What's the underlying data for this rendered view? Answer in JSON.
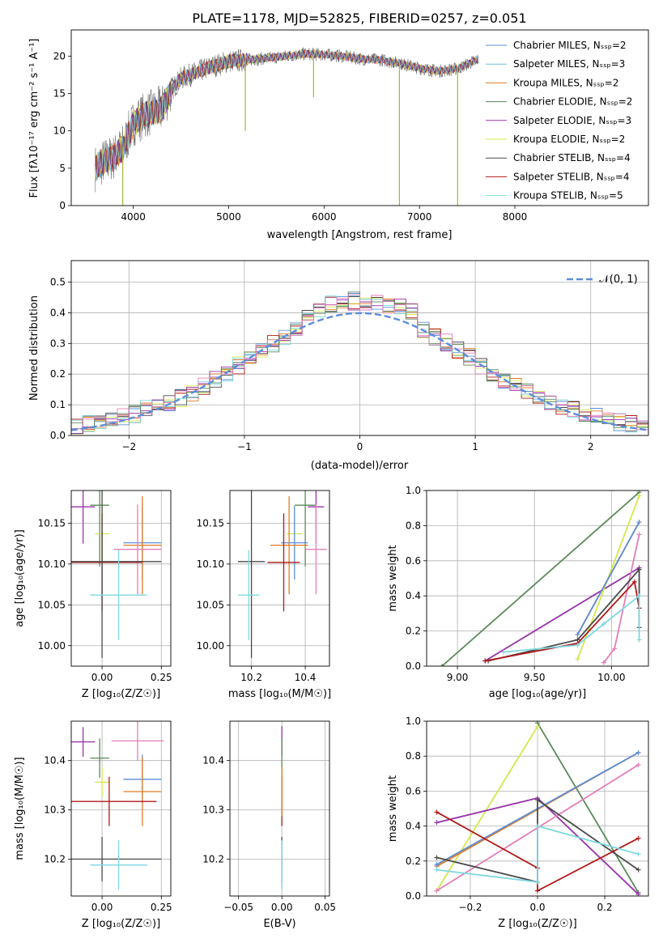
{
  "colors": {
    "chabrier_miles": "#5b8fd9",
    "salpeter_miles": "#6cc4dc",
    "kroupa_miles": "#e07b24",
    "chabrier_elodie": "#5a8a5a",
    "salpeter_elodie": "#9932aa",
    "kroupa_elodie": "#d4e84a",
    "chabrier_stelib": "#4a4a4a",
    "salpeter_stelib": "#b01818",
    "kroupa_stelib": "#7dd8e0",
    "pink": "#e47eb8",
    "fit_line": "#6e6e6e",
    "gauss": "#5b8fd9"
  },
  "chart_data": [
    {
      "id": "spectrum",
      "type": "line",
      "title": "PLATE=1178, MJD=52825, FIBERID=0257, z=0.051",
      "xlabel": "wavelength [Angstrom, rest frame]",
      "ylabel": "Flux [f_λ10^-17 erg cm^-2 s^-1 A^-1]",
      "xlim": [
        3350,
        9400
      ],
      "ylim": [
        0,
        23.5
      ],
      "xticks": [
        4000,
        5000,
        6000,
        7000,
        8000
      ],
      "yticks": [
        0,
        5,
        10,
        15,
        20
      ],
      "legend": [
        "Chabrier MILES, N_SSP=2",
        "Salpeter MILES, N_SSP=3",
        "Kroupa MILES, N_SSP=2",
        "Chabrier ELODIE, N_SSP=2",
        "Salpeter ELODIE, N_SSP=3",
        "Kroupa ELODIE, N_SSP=2",
        "Chabrier STELIB, N_SSP=4",
        "Salpeter STELIB, N_SSP=4",
        "Kroupa STELIB, N_SSP=5"
      ],
      "continuum_x": [
        3600,
        3700,
        3800,
        3900,
        4000,
        4100,
        4200,
        4300,
        4400,
        4500,
        4600,
        4800,
        5000,
        5200,
        5400,
        5600,
        5800,
        6000,
        6200,
        6400,
        6600,
        6800,
        7000,
        7200,
        7400,
        7600
      ],
      "continuum_y": [
        5,
        6,
        6.5,
        8,
        11,
        12,
        12.5,
        13,
        15.5,
        17,
        17.5,
        18.5,
        19.3,
        19.5,
        19.7,
        20,
        20.3,
        20.2,
        20,
        19.6,
        19.5,
        19,
        18.4,
        18,
        18.3,
        19.5
      ],
      "dips": [
        {
          "x": 3890,
          "y": 0
        },
        {
          "x": 5175,
          "y": 10
        },
        {
          "x": 5890,
          "y": 14.5
        },
        {
          "x": 6790,
          "y": 0
        },
        {
          "x": 7400,
          "y": 0
        }
      ]
    },
    {
      "id": "residuals",
      "type": "histogram",
      "xlabel": "(data-model)/error",
      "ylabel": "Normed distribution",
      "xlim": [
        -2.5,
        2.5
      ],
      "ylim": [
        0,
        0.57
      ],
      "xticks": [
        -2,
        -1,
        0,
        1,
        2
      ],
      "yticks": [
        0.0,
        0.1,
        0.2,
        0.3,
        0.4,
        0.5
      ],
      "legend": "𝒩(0, 1)"
    },
    {
      "id": "age_vs_Z",
      "type": "scatter",
      "xlabel": "Z [log10(Z/Z☉)]",
      "ylabel": "age [log10(age/yr)]",
      "xlim": [
        -0.13,
        0.29
      ],
      "ylim": [
        9.975,
        10.19
      ],
      "xticks": [
        0.0,
        0.25
      ],
      "yticks": [
        10.0,
        10.05,
        10.1,
        10.15
      ],
      "points": [
        {
          "c": "salpeter_elodie",
          "x": -0.08,
          "xe": 0.05,
          "y": 10.17,
          "ye": 0.045
        },
        {
          "c": "chabrier_elodie",
          "x": -0.01,
          "xe": 0.04,
          "y": 10.172,
          "ye": 0.075
        },
        {
          "c": "kroupa_elodie",
          "x": 0.0,
          "xe": 0.03,
          "y": 10.137,
          "ye": 0.035
        },
        {
          "c": "chabrier_miles",
          "x": 0.17,
          "xe": 0.08,
          "y": 10.126,
          "ye": 0.045
        },
        {
          "c": "kroupa_miles",
          "x": 0.17,
          "xe": 0.08,
          "y": 10.123,
          "ye": 0.06
        },
        {
          "c": "pink",
          "x": 0.15,
          "xe": 0.1,
          "y": 10.118,
          "ye": 0.055
        },
        {
          "c": "salpeter_stelib",
          "x": 0.0,
          "xe": 0.17,
          "y": 10.102,
          "ye": 0.06
        },
        {
          "c": "chabrier_stelib",
          "x": 0.0,
          "xe": 0.25,
          "y": 10.103,
          "ye": 0.118
        },
        {
          "c": "kroupa_stelib",
          "x": 0.07,
          "xe": 0.12,
          "y": 10.062,
          "ye": 0.055
        }
      ]
    },
    {
      "id": "age_vs_mass",
      "type": "scatter",
      "xlabel": "mass [log10(M/M☉)]",
      "ylabel": "",
      "xlim": [
        10.12,
        10.49
      ],
      "ylim": [
        9.975,
        10.19
      ],
      "xticks": [
        10.2,
        10.4
      ],
      "yticks": [
        10.0,
        10.05,
        10.1,
        10.15
      ],
      "points": [
        {
          "c": "salpeter_elodie",
          "x": 10.44,
          "xe": 0.03,
          "y": 10.17,
          "ye": 0.045
        },
        {
          "c": "chabrier_elodie",
          "x": 10.4,
          "xe": 0.04,
          "y": 10.172,
          "ye": 0.075
        },
        {
          "c": "kroupa_elodie",
          "x": 10.36,
          "xe": 0.03,
          "y": 10.137,
          "ye": 0.035
        },
        {
          "c": "chabrier_miles",
          "x": 10.36,
          "xe": 0.05,
          "y": 10.126,
          "ye": 0.045
        },
        {
          "c": "kroupa_miles",
          "x": 10.34,
          "xe": 0.07,
          "y": 10.123,
          "ye": 0.06
        },
        {
          "c": "pink",
          "x": 10.44,
          "xe": 0.04,
          "y": 10.118,
          "ye": 0.055
        },
        {
          "c": "salpeter_stelib",
          "x": 10.32,
          "xe": 0.06,
          "y": 10.102,
          "ye": 0.06
        },
        {
          "c": "chabrier_stelib",
          "x": 10.2,
          "xe": 0.05,
          "y": 10.103,
          "ye": 0.118
        },
        {
          "c": "kroupa_stelib",
          "x": 10.19,
          "xe": 0.04,
          "y": 10.062,
          "ye": 0.055
        }
      ]
    },
    {
      "id": "weight_vs_age",
      "type": "line",
      "xlabel": "age [log10(age/yr)]",
      "ylabel": "mass weight",
      "xlim": [
        8.8,
        10.24
      ],
      "ylim": [
        0.0,
        1.0
      ],
      "xticks": [
        9.0,
        9.5,
        10.0
      ],
      "yticks": [
        0.0,
        0.2,
        0.4,
        0.6,
        0.8,
        1.0
      ],
      "series": [
        {
          "c": "chabrier_elodie",
          "x": [
            8.9,
            10.18
          ],
          "y": [
            0.0,
            0.99
          ]
        },
        {
          "c": "salpeter_elodie",
          "x": [
            9.18,
            10.18
          ],
          "y": [
            0.03,
            0.56
          ]
        },
        {
          "c": "kroupa_elodie",
          "x": [
            9.78,
            10.18
          ],
          "y": [
            0.04,
            0.97
          ]
        },
        {
          "c": "kroupa_miles",
          "x": [
            9.78,
            10.18
          ],
          "y": [
            0.18,
            0.82
          ]
        },
        {
          "c": "chabrier_miles",
          "x": [
            9.78,
            10.18
          ],
          "y": [
            0.18,
            0.82
          ]
        },
        {
          "c": "pink",
          "x": [
            9.95,
            10.02,
            10.18
          ],
          "y": [
            0.02,
            0.1,
            0.75
          ]
        },
        {
          "c": "chabrier_stelib",
          "x": [
            9.2,
            9.78,
            10.18,
            10.18
          ],
          "y": [
            0.03,
            0.15,
            0.55,
            0.22
          ]
        },
        {
          "c": "salpeter_stelib",
          "x": [
            9.18,
            9.78,
            10.15,
            10.18
          ],
          "y": [
            0.03,
            0.13,
            0.48,
            0.33
          ]
        },
        {
          "c": "kroupa_stelib",
          "x": [
            9.3,
            9.78,
            9.95,
            10.18,
            10.18
          ],
          "y": [
            0.08,
            0.12,
            0.24,
            0.4,
            0.15
          ]
        }
      ]
    },
    {
      "id": "mass_vs_Z",
      "type": "scatter",
      "xlabel": "Z [log10(Z/Z☉)]",
      "ylabel": "mass [log10(M/M☉)]",
      "xlim": [
        -0.13,
        0.29
      ],
      "ylim": [
        10.125,
        10.48
      ],
      "xticks": [
        0.0,
        0.25
      ],
      "yticks": [
        10.2,
        10.3,
        10.4
      ],
      "points": [
        {
          "c": "salpeter_elodie",
          "x": -0.08,
          "xe": 0.05,
          "y": 10.438,
          "ye": 0.03
        },
        {
          "c": "chabrier_elodie",
          "x": -0.01,
          "xe": 0.04,
          "y": 10.405,
          "ye": 0.04
        },
        {
          "c": "kroupa_elodie",
          "x": 0.0,
          "xe": 0.03,
          "y": 10.356,
          "ye": 0.03
        },
        {
          "c": "pink",
          "x": 0.15,
          "xe": 0.11,
          "y": 10.44,
          "ye": 0.04
        },
        {
          "c": "chabrier_miles",
          "x": 0.17,
          "xe": 0.08,
          "y": 10.362,
          "ye": 0.05
        },
        {
          "c": "kroupa_miles",
          "x": 0.17,
          "xe": 0.08,
          "y": 10.337,
          "ye": 0.07
        },
        {
          "c": "salpeter_stelib",
          "x": 0.03,
          "xe": 0.2,
          "y": 10.317,
          "ye": 0.05
        },
        {
          "c": "chabrier_stelib",
          "x": 0.0,
          "xe": 0.25,
          "y": 10.2,
          "ye": 0.045
        },
        {
          "c": "kroupa_stelib",
          "x": 0.07,
          "xe": 0.12,
          "y": 10.188,
          "ye": 0.05
        }
      ]
    },
    {
      "id": "mass_vs_ebv",
      "type": "scatter",
      "xlabel": "E(B-V)",
      "ylabel": "",
      "xlim": [
        -0.06,
        0.055
      ],
      "ylim": [
        10.125,
        10.48
      ],
      "xticks": [
        -0.05,
        0.0,
        0.05
      ],
      "yticks": [
        10.2,
        10.3,
        10.4
      ],
      "points": [
        {
          "c": "salpeter_elodie",
          "x": 0.0,
          "y": 10.44,
          "ye": 0.03
        },
        {
          "c": "chabrier_elodie",
          "x": 0.0,
          "y": 10.405,
          "ye": 0.04
        },
        {
          "c": "kroupa_elodie",
          "x": 0.0,
          "y": 10.356,
          "ye": 0.03
        },
        {
          "c": "salpeter_stelib",
          "x": 0.0,
          "y": 10.317,
          "ye": 0.05
        },
        {
          "c": "kroupa_miles",
          "x": 0.0,
          "y": 10.337,
          "ye": 0.05
        },
        {
          "c": "chabrier_stelib",
          "x": 0.0,
          "y": 10.2,
          "ye": 0.045
        },
        {
          "c": "kroupa_stelib",
          "x": 0.0,
          "y": 10.188,
          "ye": 0.05
        }
      ]
    },
    {
      "id": "weight_vs_Z",
      "type": "line",
      "xlabel": "Z [log10(Z/Z☉)]",
      "ylabel": "mass weight",
      "xlim": [
        -0.33,
        0.33
      ],
      "ylim": [
        0.0,
        1.0
      ],
      "xticks": [
        -0.2,
        0.0,
        0.2
      ],
      "yticks": [
        0.0,
        0.2,
        0.4,
        0.6,
        0.8,
        1.0
      ],
      "series": [
        {
          "c": "chabrier_elodie",
          "x": [
            0.0,
            0.3
          ],
          "y": [
            0.99,
            0.02
          ]
        },
        {
          "c": "kroupa_elodie",
          "x": [
            -0.3,
            0.0
          ],
          "y": [
            0.03,
            0.97
          ]
        },
        {
          "c": "salpeter_elodie",
          "x": [
            -0.3,
            0.0,
            0.3
          ],
          "y": [
            0.42,
            0.56,
            0.01
          ]
        },
        {
          "c": "kroupa_miles",
          "x": [
            -0.3,
            0.3
          ],
          "y": [
            0.17,
            0.82
          ]
        },
        {
          "c": "chabrier_miles",
          "x": [
            -0.3,
            0.3
          ],
          "y": [
            0.18,
            0.82
          ]
        },
        {
          "c": "pink",
          "x": [
            -0.3,
            0.3
          ],
          "y": [
            0.03,
            0.75
          ]
        },
        {
          "c": "chabrier_stelib",
          "x": [
            -0.3,
            0.0,
            0.0,
            0.3
          ],
          "y": [
            0.22,
            0.08,
            0.55,
            0.15
          ]
        },
        {
          "c": "salpeter_stelib",
          "x": [
            -0.3,
            0.0,
            0.0,
            0.3
          ],
          "y": [
            0.48,
            0.16,
            0.03,
            0.33
          ]
        },
        {
          "c": "kroupa_stelib",
          "x": [
            -0.3,
            0.0,
            0.0,
            0.3
          ],
          "y": [
            0.15,
            0.08,
            0.4,
            0.24
          ]
        }
      ]
    }
  ]
}
